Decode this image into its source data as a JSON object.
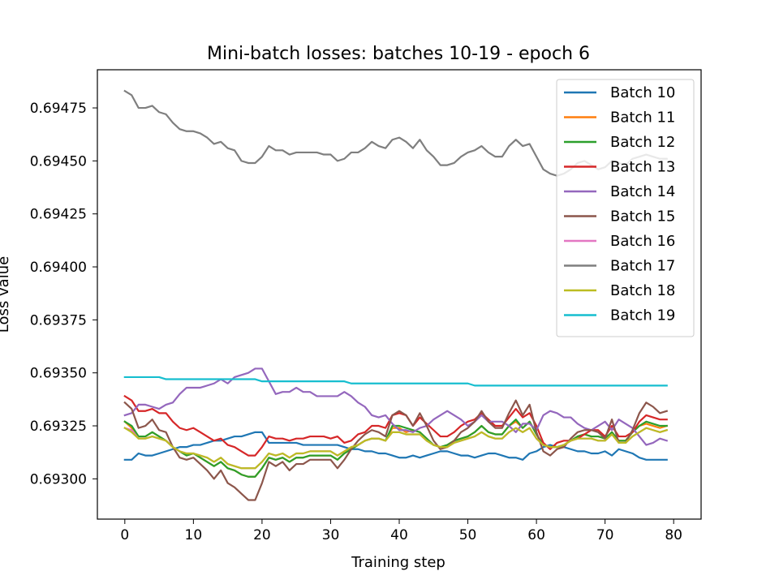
{
  "chart_data": {
    "type": "line",
    "title": "Mini-batch losses: batches 10-19 - epoch 6",
    "xlabel": "Training step",
    "ylabel": "Loss value",
    "xlim": [
      -4,
      84
    ],
    "ylim": [
      0.69281,
      0.69493
    ],
    "xticks": [
      0,
      10,
      20,
      30,
      40,
      50,
      60,
      70,
      80
    ],
    "yticks": [
      0.693,
      0.69325,
      0.6935,
      0.69375,
      0.694,
      0.69425,
      0.6945,
      0.69475
    ],
    "ytick_labels": [
      "0.69300",
      "0.69325",
      "0.69350",
      "0.69375",
      "0.69400",
      "0.69425",
      "0.69450",
      "0.69475"
    ],
    "grid": false,
    "legend_position": "top-right",
    "series": [
      {
        "name": "Batch 10",
        "color": "#1f77b4",
        "x_start": 0,
        "x_step": 1,
        "values": [
          0.69309,
          0.69309,
          0.69312,
          0.69311,
          0.69311,
          0.69312,
          0.69313,
          0.69314,
          0.69315,
          0.69315,
          0.69316,
          0.69316,
          0.69317,
          0.69318,
          0.69318,
          0.69319,
          0.6932,
          0.6932,
          0.69321,
          0.69322,
          0.69322,
          0.69317,
          0.69317,
          0.69317,
          0.69317,
          0.69317,
          0.69316,
          0.69316,
          0.69316,
          0.69316,
          0.69316,
          0.69316,
          0.69315,
          0.69314,
          0.69314,
          0.69313,
          0.69313,
          0.69312,
          0.69312,
          0.69311,
          0.6931,
          0.6931,
          0.69311,
          0.6931,
          0.69311,
          0.69312,
          0.69313,
          0.69313,
          0.69312,
          0.69311,
          0.69311,
          0.6931,
          0.69311,
          0.69312,
          0.69312,
          0.69311,
          0.6931,
          0.6931,
          0.69309,
          0.69312,
          0.69313,
          0.69315,
          0.69316,
          0.69315,
          0.69315,
          0.69314,
          0.69313,
          0.69313,
          0.69312,
          0.69312,
          0.69313,
          0.69311,
          0.69314,
          0.69313,
          0.69312,
          0.6931,
          0.69309,
          0.69309,
          0.69309,
          0.69309
        ]
      },
      {
        "name": "Batch 11",
        "color": "#ff7f0e",
        "x_start": 0,
        "x_step": 1,
        "values": [
          0.69327,
          0.69324,
          0.6932,
          0.6932,
          0.69322,
          0.6932,
          0.69318,
          0.69315,
          0.69313,
          0.69311,
          0.69312,
          0.6931,
          0.69308,
          0.69306,
          0.69308,
          0.69305,
          0.69304,
          0.69302,
          0.69301,
          0.69301,
          0.69305,
          0.6931,
          0.69309,
          0.6931,
          0.69308,
          0.6931,
          0.6931,
          0.69311,
          0.69311,
          0.69311,
          0.69311,
          0.69309,
          0.69312,
          0.69314,
          0.69316,
          0.69318,
          0.69319,
          0.69319,
          0.69318,
          0.69324,
          0.69324,
          0.69322,
          0.69323,
          0.69322,
          0.69319,
          0.69316,
          0.69315,
          0.69316,
          0.69318,
          0.69319,
          0.6932,
          0.69322,
          0.69325,
          0.69322,
          0.69321,
          0.69321,
          0.69325,
          0.69327,
          0.69324,
          0.69327,
          0.69321,
          0.69316,
          0.69315,
          0.69315,
          0.69316,
          0.69318,
          0.6932,
          0.69321,
          0.6932,
          0.6932,
          0.69319,
          0.69322,
          0.69318,
          0.69318,
          0.69322,
          0.69325,
          0.69326,
          0.69325,
          0.69324,
          0.69325
        ]
      },
      {
        "name": "Batch 12",
        "color": "#2ca02c",
        "x_start": 0,
        "x_step": 1,
        "values": [
          0.69327,
          0.69325,
          0.6932,
          0.6932,
          0.69322,
          0.6932,
          0.69318,
          0.69315,
          0.69313,
          0.69311,
          0.69312,
          0.6931,
          0.69308,
          0.69306,
          0.69308,
          0.69305,
          0.69304,
          0.69302,
          0.69301,
          0.69301,
          0.69305,
          0.6931,
          0.69309,
          0.6931,
          0.69308,
          0.6931,
          0.6931,
          0.69311,
          0.69311,
          0.69311,
          0.69311,
          0.69309,
          0.69312,
          0.69314,
          0.69316,
          0.69318,
          0.69319,
          0.69319,
          0.69318,
          0.69325,
          0.69325,
          0.69324,
          0.69323,
          0.69322,
          0.69319,
          0.69316,
          0.69315,
          0.69316,
          0.69318,
          0.69319,
          0.6932,
          0.69322,
          0.69325,
          0.69322,
          0.69321,
          0.69321,
          0.69325,
          0.69328,
          0.69324,
          0.69327,
          0.69321,
          0.69316,
          0.69315,
          0.69315,
          0.69316,
          0.69318,
          0.6932,
          0.69321,
          0.6932,
          0.6932,
          0.69319,
          0.69322,
          0.69318,
          0.69318,
          0.69322,
          0.69325,
          0.69327,
          0.69326,
          0.69325,
          0.69325
        ]
      },
      {
        "name": "Batch 13",
        "color": "#d62728",
        "x_start": 0,
        "x_step": 1,
        "values": [
          0.69339,
          0.69337,
          0.69332,
          0.69332,
          0.69333,
          0.69331,
          0.69331,
          0.69327,
          0.69324,
          0.69323,
          0.69324,
          0.69322,
          0.6932,
          0.69318,
          0.69319,
          0.69316,
          0.69315,
          0.69313,
          0.69311,
          0.69311,
          0.69315,
          0.6932,
          0.69319,
          0.69319,
          0.69318,
          0.69319,
          0.69319,
          0.6932,
          0.6932,
          0.6932,
          0.69319,
          0.6932,
          0.69317,
          0.69318,
          0.69321,
          0.69322,
          0.69325,
          0.69325,
          0.69324,
          0.6933,
          0.69331,
          0.6933,
          0.69325,
          0.69329,
          0.69326,
          0.69323,
          0.6932,
          0.6932,
          0.69322,
          0.69325,
          0.69327,
          0.69328,
          0.69331,
          0.69328,
          0.69325,
          0.69325,
          0.69329,
          0.69333,
          0.69329,
          0.69331,
          0.69325,
          0.69317,
          0.69314,
          0.69317,
          0.69318,
          0.69318,
          0.69319,
          0.69321,
          0.69323,
          0.69323,
          0.6932,
          0.69325,
          0.6932,
          0.6932,
          0.69322,
          0.69327,
          0.6933,
          0.69329,
          0.69328,
          0.69328
        ]
      },
      {
        "name": "Batch 14",
        "color": "#9467bd",
        "x_start": 0,
        "x_step": 1,
        "values": [
          0.6933,
          0.69331,
          0.69335,
          0.69335,
          0.69334,
          0.69333,
          0.69335,
          0.69336,
          0.6934,
          0.69343,
          0.69343,
          0.69343,
          0.69344,
          0.69345,
          0.69347,
          0.69345,
          0.69348,
          0.69349,
          0.6935,
          0.69352,
          0.69352,
          0.69346,
          0.6934,
          0.69341,
          0.69341,
          0.69343,
          0.69341,
          0.69341,
          0.69339,
          0.69339,
          0.69339,
          0.69339,
          0.69341,
          0.69339,
          0.69336,
          0.69334,
          0.6933,
          0.69329,
          0.6933,
          0.69326,
          0.69323,
          0.69323,
          0.69322,
          0.69324,
          0.69325,
          0.69328,
          0.6933,
          0.69332,
          0.6933,
          0.69328,
          0.69325,
          0.69327,
          0.6933,
          0.69327,
          0.69327,
          0.69327,
          0.69325,
          0.69322,
          0.69326,
          0.69326,
          0.69323,
          0.6933,
          0.69332,
          0.69331,
          0.69329,
          0.69329,
          0.69326,
          0.69324,
          0.69323,
          0.69325,
          0.69327,
          0.69323,
          0.69328,
          0.69326,
          0.69324,
          0.6932,
          0.69316,
          0.69317,
          0.69319,
          0.69318
        ]
      },
      {
        "name": "Batch 15",
        "color": "#8c564b",
        "x_start": 0,
        "x_step": 1,
        "values": [
          0.69336,
          0.69333,
          0.69324,
          0.69325,
          0.69328,
          0.69323,
          0.69322,
          0.69315,
          0.6931,
          0.69309,
          0.6931,
          0.69307,
          0.69304,
          0.693,
          0.69304,
          0.69298,
          0.69296,
          0.69293,
          0.6929,
          0.6929,
          0.69298,
          0.69308,
          0.69306,
          0.69308,
          0.69304,
          0.69307,
          0.69307,
          0.69309,
          0.69309,
          0.69309,
          0.69309,
          0.69305,
          0.69309,
          0.69314,
          0.69318,
          0.69321,
          0.69323,
          0.69322,
          0.6932,
          0.6933,
          0.69332,
          0.6933,
          0.69325,
          0.69331,
          0.69325,
          0.69318,
          0.69314,
          0.69315,
          0.69318,
          0.69322,
          0.69324,
          0.69327,
          0.69332,
          0.69327,
          0.69324,
          0.69324,
          0.69331,
          0.69337,
          0.6933,
          0.69335,
          0.69322,
          0.69313,
          0.69311,
          0.69314,
          0.69315,
          0.69319,
          0.69322,
          0.69323,
          0.69323,
          0.69322,
          0.69319,
          0.69328,
          0.69317,
          0.69317,
          0.69323,
          0.69331,
          0.69336,
          0.69334,
          0.69331,
          0.69332
        ]
      },
      {
        "name": "Batch 16",
        "color": "#e377c2",
        "x_start": 0,
        "x_step": 1,
        "values": [
          0.69324,
          0.69323,
          0.69319,
          0.69319,
          0.6932,
          0.69319,
          0.69318,
          0.69315,
          0.69313,
          0.69312,
          0.69312,
          0.69311,
          0.6931,
          0.69308,
          0.6931,
          0.69307,
          0.69306,
          0.69305,
          0.69305,
          0.69305,
          0.69308,
          0.69312,
          0.69311,
          0.69312,
          0.6931,
          0.69312,
          0.69312,
          0.69313,
          0.69313,
          0.69313,
          0.69313,
          0.69311,
          0.69313,
          0.69315,
          0.69316,
          0.69318,
          0.69319,
          0.69319,
          0.69318,
          0.69322,
          0.69322,
          0.69321,
          0.69321,
          0.69321,
          0.69318,
          0.69316,
          0.69315,
          0.69315,
          0.69317,
          0.69318,
          0.69319,
          0.6932,
          0.69322,
          0.6932,
          0.69319,
          0.69319,
          0.69322,
          0.69324,
          0.69322,
          0.69324,
          0.69319,
          0.69316,
          0.69315,
          0.69315,
          0.69316,
          0.69318,
          0.69319,
          0.69319,
          0.69319,
          0.69318,
          0.69318,
          0.69321,
          0.69317,
          0.69317,
          0.6932,
          0.69322,
          0.69324,
          0.69323,
          0.69322,
          0.69323
        ]
      },
      {
        "name": "Batch 17",
        "color": "#7f7f7f",
        "x_start": 0,
        "x_step": 1,
        "values": [
          0.69483,
          0.69481,
          0.69475,
          0.69475,
          0.69476,
          0.69473,
          0.69472,
          0.69468,
          0.69465,
          0.69464,
          0.69464,
          0.69463,
          0.69461,
          0.69458,
          0.69459,
          0.69456,
          0.69455,
          0.6945,
          0.69449,
          0.69449,
          0.69452,
          0.69457,
          0.69455,
          0.69455,
          0.69453,
          0.69454,
          0.69454,
          0.69454,
          0.69454,
          0.69453,
          0.69453,
          0.6945,
          0.69451,
          0.69454,
          0.69454,
          0.69456,
          0.69459,
          0.69457,
          0.69456,
          0.6946,
          0.69461,
          0.69459,
          0.69456,
          0.6946,
          0.69455,
          0.69452,
          0.69448,
          0.69448,
          0.69449,
          0.69452,
          0.69454,
          0.69455,
          0.69457,
          0.69454,
          0.69452,
          0.69452,
          0.69457,
          0.6946,
          0.69457,
          0.69458,
          0.69452,
          0.69446,
          0.69444,
          0.69443,
          0.69444,
          0.69446,
          0.69449,
          0.6945,
          0.69448,
          0.69446,
          0.69447,
          0.6945,
          0.69449,
          0.69448,
          0.69451,
          0.69452,
          0.69453,
          0.69452,
          0.69451,
          0.69451
        ]
      },
      {
        "name": "Batch 18",
        "color": "#bcbd22",
        "x_start": 0,
        "x_step": 1,
        "values": [
          0.69324,
          0.69322,
          0.69319,
          0.69319,
          0.6932,
          0.69319,
          0.69318,
          0.69315,
          0.69313,
          0.69312,
          0.69312,
          0.69311,
          0.6931,
          0.69308,
          0.6931,
          0.69307,
          0.69306,
          0.69305,
          0.69305,
          0.69305,
          0.69308,
          0.69312,
          0.69311,
          0.69312,
          0.6931,
          0.69312,
          0.69312,
          0.69313,
          0.69313,
          0.69313,
          0.69313,
          0.69311,
          0.69313,
          0.69315,
          0.69316,
          0.69318,
          0.69319,
          0.69319,
          0.69318,
          0.69322,
          0.69322,
          0.69321,
          0.69321,
          0.69321,
          0.69318,
          0.69316,
          0.69315,
          0.69315,
          0.69317,
          0.69318,
          0.69319,
          0.6932,
          0.69322,
          0.6932,
          0.69319,
          0.69319,
          0.69322,
          0.69324,
          0.69322,
          0.69324,
          0.69319,
          0.69316,
          0.69315,
          0.69315,
          0.69316,
          0.69318,
          0.69319,
          0.69319,
          0.69319,
          0.69318,
          0.69318,
          0.69321,
          0.69317,
          0.69317,
          0.6932,
          0.69322,
          0.69324,
          0.69323,
          0.69322,
          0.69323
        ]
      },
      {
        "name": "Batch 19",
        "color": "#17becf",
        "x_start": 0,
        "x_step": 1,
        "values": [
          0.69348,
          0.69348,
          0.69348,
          0.69348,
          0.69348,
          0.69348,
          0.69347,
          0.69347,
          0.69347,
          0.69347,
          0.69347,
          0.69347,
          0.69347,
          0.69347,
          0.69347,
          0.69347,
          0.69347,
          0.69347,
          0.69347,
          0.69347,
          0.69346,
          0.69346,
          0.69346,
          0.69346,
          0.69346,
          0.69346,
          0.69346,
          0.69346,
          0.69346,
          0.69346,
          0.69346,
          0.69346,
          0.69346,
          0.69345,
          0.69345,
          0.69345,
          0.69345,
          0.69345,
          0.69345,
          0.69345,
          0.69345,
          0.69345,
          0.69345,
          0.69345,
          0.69345,
          0.69345,
          0.69345,
          0.69345,
          0.69345,
          0.69345,
          0.69345,
          0.69344,
          0.69344,
          0.69344,
          0.69344,
          0.69344,
          0.69344,
          0.69344,
          0.69344,
          0.69344,
          0.69344,
          0.69344,
          0.69344,
          0.69344,
          0.69344,
          0.69344,
          0.69344,
          0.69344,
          0.69344,
          0.69344,
          0.69344,
          0.69344,
          0.69344,
          0.69344,
          0.69344,
          0.69344,
          0.69344,
          0.69344,
          0.69344,
          0.69344
        ]
      }
    ]
  }
}
